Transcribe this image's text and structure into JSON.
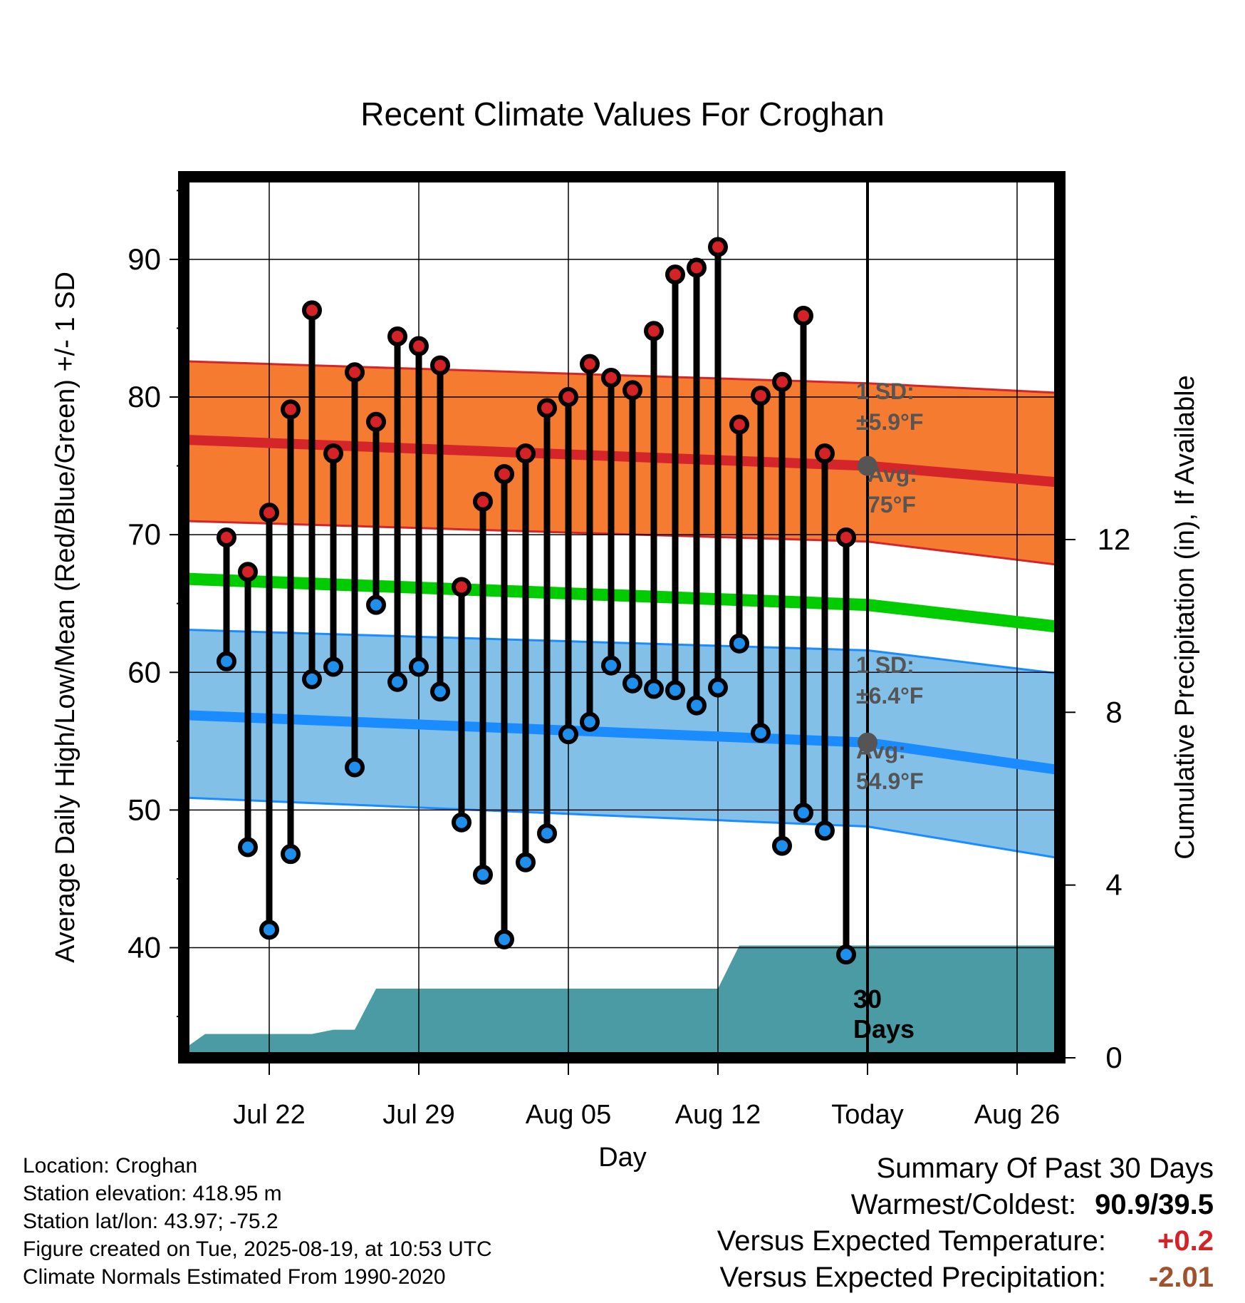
{
  "chart_data": {
    "type": "line",
    "title": "Recent Climate Values For Croghan",
    "xlabel": "Day",
    "ylabel_left": "Average Daily High/Low/Mean (Red/Blue/Green) +/- 1 SD",
    "ylabel_right": "Cumulative Precipitation (in), If Available",
    "x_range": [
      "Jul 18",
      "Aug 28"
    ],
    "y_range": [
      32,
      96
    ],
    "y2_range": [
      0,
      20.4
    ],
    "y_ticks": [
      40,
      50,
      60,
      70,
      80,
      90
    ],
    "y2_ticks": [
      0,
      4,
      8,
      12
    ],
    "x_ticks": [
      {
        "date": "Jul 22",
        "label": "Jul 22"
      },
      {
        "date": "Jul 29",
        "label": "Jul 29"
      },
      {
        "date": "Aug 05",
        "label": "Aug 05"
      },
      {
        "date": "Aug 12",
        "label": "Aug 12"
      },
      {
        "date": "Aug 19",
        "label": "Today"
      },
      {
        "date": "Aug 26",
        "label": "Aug 26"
      }
    ],
    "today": "Aug 19",
    "grid": true,
    "observed": {
      "dates": [
        "Jul 20",
        "Jul 21",
        "Jul 22",
        "Jul 23",
        "Jul 24",
        "Jul 25",
        "Jul 26",
        "Jul 27",
        "Jul 28",
        "Jul 29",
        "Jul 30",
        "Jul 31",
        "Aug 01",
        "Aug 02",
        "Aug 03",
        "Aug 04",
        "Aug 05",
        "Aug 06",
        "Aug 07",
        "Aug 08",
        "Aug 09",
        "Aug 10",
        "Aug 11",
        "Aug 12",
        "Aug 13",
        "Aug 14",
        "Aug 15",
        "Aug 16",
        "Aug 17",
        "Aug 18"
      ],
      "high": [
        69.8,
        67.3,
        71.6,
        79.1,
        86.3,
        75.9,
        81.8,
        78.2,
        84.4,
        83.7,
        82.3,
        66.2,
        72.4,
        74.4,
        75.9,
        79.2,
        80.0,
        82.4,
        81.4,
        80.5,
        84.8,
        88.9,
        89.4,
        90.9,
        78.0,
        80.1,
        81.1,
        85.9,
        75.9,
        69.8
      ],
      "low": [
        60.8,
        47.3,
        41.3,
        46.8,
        59.5,
        60.4,
        53.1,
        64.9,
        59.3,
        60.4,
        58.6,
        49.1,
        45.3,
        40.6,
        46.2,
        48.3,
        55.5,
        56.4,
        60.5,
        59.2,
        58.8,
        58.7,
        57.6,
        58.9,
        62.1,
        55.6,
        47.4,
        49.8,
        48.5,
        39.5
      ]
    },
    "normals": {
      "dates": [
        "Jul 18",
        "Aug 19",
        "Aug 28"
      ],
      "avg_high": [
        76.9,
        75.0,
        73.8
      ],
      "high_sd_upper": [
        82.6,
        81.0,
        80.3
      ],
      "high_sd_lower": [
        71.0,
        69.5,
        67.8
      ],
      "avg_low": [
        56.9,
        54.9,
        52.9
      ],
      "low_sd_upper": [
        63.1,
        61.6,
        59.9
      ],
      "low_sd_lower": [
        50.9,
        48.8,
        46.5
      ],
      "avg_mean": [
        66.8,
        64.9,
        63.3
      ]
    },
    "precip": {
      "dates": [
        "Jul 18",
        "Jul 19",
        "Jul 24",
        "Jul 25",
        "Jul 26",
        "Jul 27",
        "Aug 12",
        "Aug 13",
        "Aug 28"
      ],
      "cumulative": [
        0.2,
        0.55,
        0.55,
        0.65,
        0.65,
        1.6,
        1.6,
        2.6,
        2.6
      ]
    },
    "annotations": {
      "high_sd": "±5.9°F",
      "high_avg": "75°F",
      "low_sd": "±6.4°F",
      "low_avg": "54.9°F",
      "sd_prefix": "1 SD:",
      "avg_prefix": "Avg:",
      "days_number": "30",
      "days_word": "Days"
    },
    "colors": {
      "high_band": "#f47b30",
      "high_line": "#d4262a",
      "low_band": "#82c0e8",
      "low_line": "#1b8cff",
      "mean_line": "#00cc00",
      "precip": "#4a9ba3",
      "high_marker": "#d42226",
      "low_marker": "#1e8fec",
      "annotation_text": "#555555"
    }
  },
  "footer": {
    "location": "Location: Croghan",
    "elevation": "Station elevation: 418.95 m",
    "latlon": "Station lat/lon: 43.97; -75.2",
    "created": "Figure created on Tue, 2025-08-19, at 10:53 UTC",
    "normals": "Climate Normals Estimated From 1990-2020"
  },
  "summary": {
    "heading": "Summary Of Past 30 Days",
    "warmest_coldest_label": "Warmest/Coldest:",
    "warmest_coldest_value": "90.9/39.5",
    "temp_label": "Versus Expected Temperature:",
    "temp_value": "+0.2",
    "temp_color": "#d42226",
    "precip_label": "Versus Expected Precipitation:",
    "precip_value": "-2.01",
    "precip_color": "#a0522d"
  }
}
